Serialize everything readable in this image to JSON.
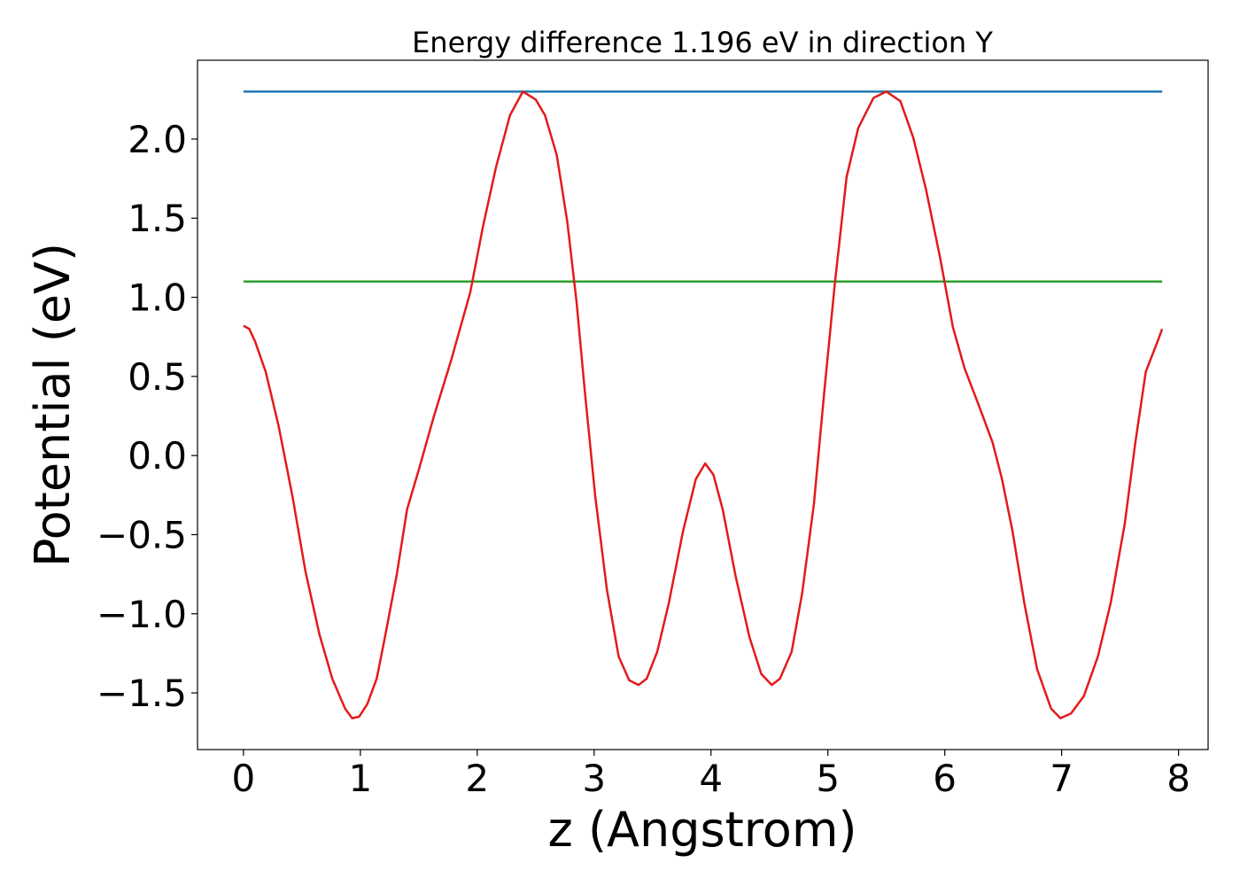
{
  "chart_data": {
    "type": "line",
    "title": "Energy difference 1.196 eV in direction Y",
    "xlabel": "z (Angstrom)",
    "ylabel": "Potential (eV)",
    "xlim": [
      -0.393,
      8.253
    ],
    "ylim": [
      -1.858,
      2.498
    ],
    "xticks": [
      0,
      1,
      2,
      3,
      4,
      5,
      6,
      7,
      8
    ],
    "yticks": [
      {
        "value": -1.5,
        "label": "−1.5"
      },
      {
        "value": -1.0,
        "label": "−1.0"
      },
      {
        "value": -0.5,
        "label": "−0.5"
      },
      {
        "value": 0,
        "label": "0.0"
      },
      0.5,
      {
        "value": 1.0,
        "label": "1.0"
      },
      1.5,
      {
        "value": 2.0,
        "label": "2.0"
      }
    ],
    "grid": false,
    "series": [
      {
        "color": "#1f77b4",
        "x": [
          0,
          7.86
        ],
        "values": [
          2.3,
          2.3
        ]
      },
      {
        "color": "#2ca02c",
        "x": [
          0,
          7.86
        ],
        "values": [
          1.1,
          1.1
        ]
      },
      {
        "color": "#e31a1c",
        "x": [
          0,
          0.05,
          0.1,
          0.19,
          0.3,
          0.42,
          0.53,
          0.65,
          0.76,
          0.87,
          0.93,
          0.99,
          1.06,
          1.14,
          1.21,
          1.31,
          1.4,
          1.5,
          1.63,
          1.78,
          1.94,
          2.05,
          2.16,
          2.28,
          2.39,
          2.5,
          2.58,
          2.68,
          2.77,
          2.85,
          2.92,
          3.01,
          3.11,
          3.21,
          3.3,
          3.38,
          3.45,
          3.54,
          3.64,
          3.76,
          3.87,
          3.95,
          4.02,
          4.1,
          4.21,
          4.33,
          4.43,
          4.52,
          4.59,
          4.69,
          4.78,
          4.88,
          4.97,
          5.06,
          5.16,
          5.26,
          5.39,
          5.5,
          5.62,
          5.73,
          5.84,
          5.96,
          6.07,
          6.17,
          6.3,
          6.41,
          6.49,
          6.58,
          6.68,
          6.79,
          6.91,
          6.99,
          7.08,
          7.19,
          7.31,
          7.42,
          7.54,
          7.63,
          7.72,
          7.82,
          7.86
        ],
        "values": [
          0.82,
          0.8,
          0.72,
          0.53,
          0.19,
          -0.26,
          -0.73,
          -1.13,
          -1.41,
          -1.6,
          -1.66,
          -1.65,
          -1.57,
          -1.41,
          -1.15,
          -0.76,
          -0.34,
          -0.09,
          0.25,
          0.61,
          1.03,
          1.45,
          1.82,
          2.15,
          2.3,
          2.25,
          2.15,
          1.9,
          1.48,
          0.97,
          0.41,
          -0.26,
          -0.85,
          -1.27,
          -1.42,
          -1.45,
          -1.41,
          -1.24,
          -0.93,
          -0.48,
          -0.15,
          -0.05,
          -0.12,
          -0.34,
          -0.76,
          -1.15,
          -1.38,
          -1.45,
          -1.41,
          -1.24,
          -0.87,
          -0.31,
          0.41,
          1.09,
          1.76,
          2.07,
          2.26,
          2.3,
          2.24,
          2.01,
          1.68,
          1.25,
          0.81,
          0.55,
          0.3,
          0.08,
          -0.15,
          -0.48,
          -0.93,
          -1.35,
          -1.6,
          -1.66,
          -1.63,
          -1.52,
          -1.27,
          -0.93,
          -0.43,
          0.08,
          0.53,
          0.72,
          0.8
        ]
      }
    ]
  }
}
